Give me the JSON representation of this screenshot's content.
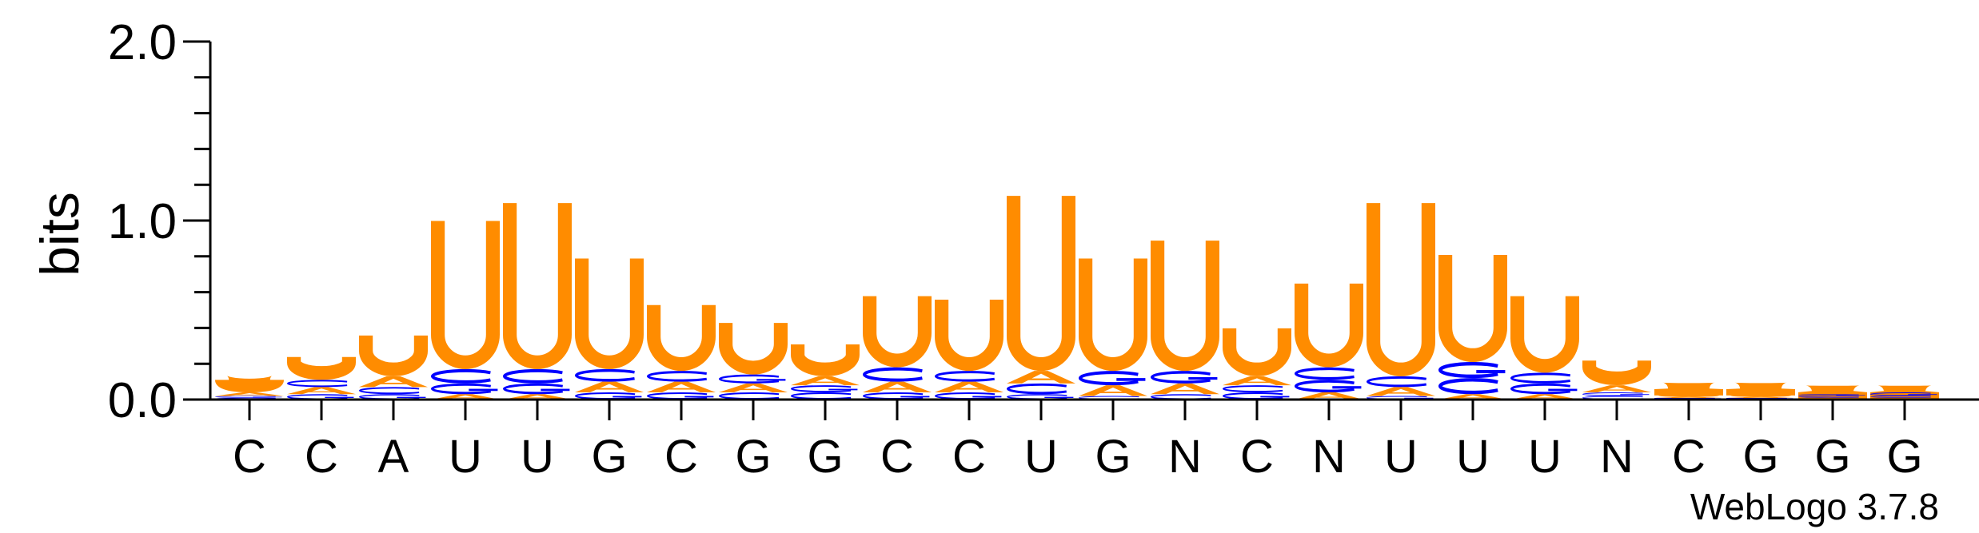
{
  "chart_data": {
    "type": "sequence-logo",
    "ylabel": "bits",
    "ylim": [
      0,
      2.0
    ],
    "yticks": [
      {
        "value": 0.0,
        "label": "0.0"
      },
      {
        "value": 1.0,
        "label": "1.0"
      },
      {
        "value": 2.0,
        "label": "2.0"
      }
    ],
    "minor_step": 0.2,
    "colors": {
      "U": "#FF8C00",
      "A": "#FF8C00",
      "C": "#0000FF",
      "G": "#0000FF",
      "axis": "#000000"
    },
    "positions": [
      "C",
      "C",
      "A",
      "U",
      "U",
      "G",
      "C",
      "G",
      "G",
      "C",
      "C",
      "U",
      "G",
      "N",
      "C",
      "N",
      "U",
      "U",
      "U",
      "N",
      "C",
      "G",
      "G",
      "G"
    ],
    "stacks": [
      {
        "U": 0.07,
        "A": 0.02,
        "C": 0.01,
        "G": 0.01
      },
      {
        "U": 0.13,
        "A": 0.04,
        "C": 0.04,
        "G": 0.03
      },
      {
        "U": 0.23,
        "A": 0.06,
        "C": 0.04,
        "G": 0.03
      },
      {
        "U": 0.83,
        "C": 0.08,
        "G": 0.06,
        "A": 0.03
      },
      {
        "U": 0.93,
        "C": 0.08,
        "G": 0.06,
        "A": 0.03
      },
      {
        "U": 0.62,
        "C": 0.07,
        "A": 0.06,
        "G": 0.04
      },
      {
        "U": 0.37,
        "A": 0.06,
        "C": 0.06,
        "G": 0.04
      },
      {
        "U": 0.29,
        "A": 0.05,
        "G": 0.05,
        "C": 0.04
      },
      {
        "U": 0.18,
        "A": 0.05,
        "C": 0.04,
        "G": 0.04
      },
      {
        "U": 0.4,
        "C": 0.08,
        "A": 0.06,
        "G": 0.04
      },
      {
        "U": 0.4,
        "A": 0.06,
        "C": 0.06,
        "G": 0.04
      },
      {
        "U": 0.98,
        "A": 0.07,
        "C": 0.06,
        "G": 0.03
      },
      {
        "U": 0.63,
        "G": 0.08,
        "A": 0.06,
        "C": 0.02
      },
      {
        "U": 0.73,
        "G": 0.07,
        "A": 0.06,
        "C": 0.03
      },
      {
        "U": 0.27,
        "A": 0.05,
        "G": 0.04,
        "C": 0.04
      },
      {
        "U": 0.47,
        "G": 0.07,
        "C": 0.07,
        "A": 0.04
      },
      {
        "U": 0.97,
        "C": 0.06,
        "A": 0.05,
        "G": 0.02
      },
      {
        "U": 0.6,
        "C": 0.09,
        "G": 0.09,
        "A": 0.03
      },
      {
        "U": 0.43,
        "G": 0.06,
        "C": 0.06,
        "A": 0.03
      },
      {
        "U": 0.14,
        "A": 0.04,
        "C": 0.02,
        "G": 0.02
      },
      {
        "U": 0.01,
        "C": 0.005,
        "G": 0.005,
        "A": 0.005
      },
      {
        "U": 0.01,
        "C": 0.005,
        "G": 0.005,
        "A": 0.005
      },
      {
        "C": 0.01,
        "G": 0.01,
        "U": 0.005,
        "A": 0.005
      },
      {
        "G": 0.02,
        "C": 0.01,
        "U": 0.005,
        "A": 0.005
      }
    ],
    "footer": "WebLogo 3.7.8"
  }
}
